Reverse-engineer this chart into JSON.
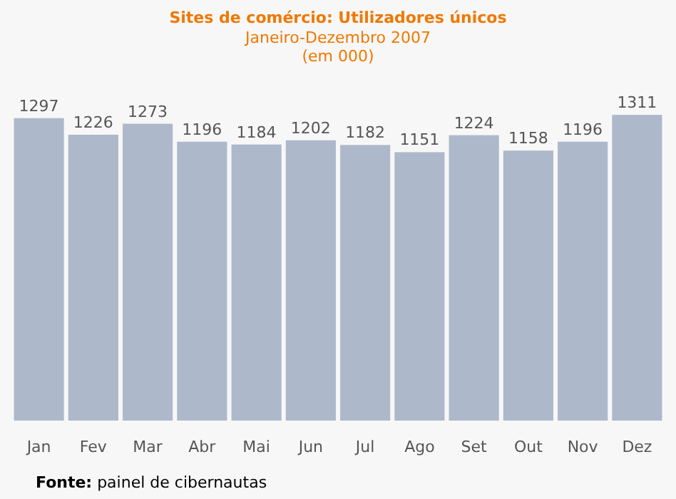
{
  "chart_data": {
    "type": "bar",
    "title": "Sites de comércio: Utilizadores únicos",
    "subtitle": "Janeiro-Dezembro 2007\n(em 000)",
    "categories": [
      "Jan",
      "Fev",
      "Mar",
      "Abr",
      "Mai",
      "Jun",
      "Jul",
      "Ago",
      "Set",
      "Out",
      "Nov",
      "Dez"
    ],
    "values": [
      1297,
      1226,
      1273,
      1196,
      1184,
      1202,
      1182,
      1151,
      1224,
      1158,
      1196,
      1311
    ],
    "color": "#adb9ca",
    "data_labels": true,
    "annotations": [
      "Fonte: painel de cibernautas"
    ]
  }
}
